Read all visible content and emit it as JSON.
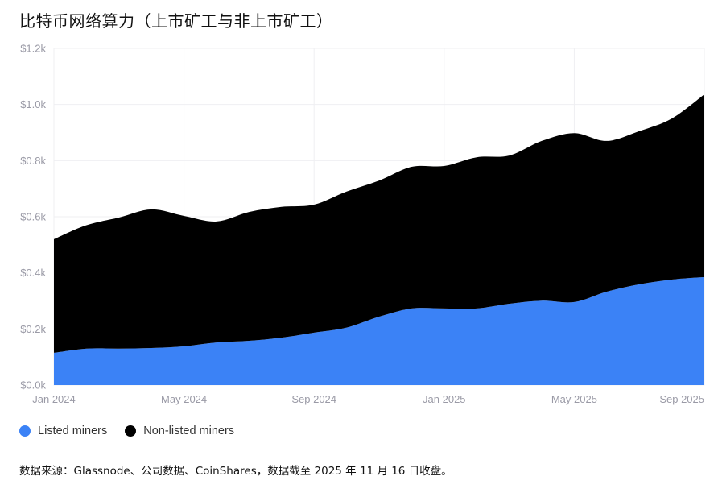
{
  "title": "比特币网络算力（上市矿工与非上市矿工）",
  "footer": "数据来源：Glassnode、公司数据、CoinShares，数据截至 2025 年 11 月 16 日收盘。",
  "chart_data": {
    "type": "area",
    "stacked": true,
    "title": "比特币网络算力（上市矿工与非上市矿工）",
    "xlabel": "",
    "ylabel": "",
    "x": [
      "2024-01",
      "2024-02",
      "2024-03",
      "2024-04",
      "2024-05",
      "2024-06",
      "2024-07",
      "2024-08",
      "2024-09",
      "2024-10",
      "2024-11",
      "2024-12",
      "2025-01",
      "2025-02",
      "2025-03",
      "2025-04",
      "2025-05",
      "2025-06",
      "2025-07",
      "2025-08",
      "2025-09"
    ],
    "x_ticks": [
      {
        "at": "2024-01",
        "label": "Jan 2024"
      },
      {
        "at": "2024-05",
        "label": "May 2024"
      },
      {
        "at": "2024-09",
        "label": "Sep 2024"
      },
      {
        "at": "2025-01",
        "label": "Jan 2025"
      },
      {
        "at": "2025-05",
        "label": "May 2025"
      },
      {
        "at": "2025-09",
        "label": "Sep 2025"
      }
    ],
    "y_ticks": [
      {
        "value": 0,
        "label": "$0.0k"
      },
      {
        "value": 200,
        "label": "$0.2k"
      },
      {
        "value": 400,
        "label": "$0.4k"
      },
      {
        "value": 600,
        "label": "$0.6k"
      },
      {
        "value": 800,
        "label": "$0.8k"
      },
      {
        "value": 1000,
        "label": "$1.0k"
      },
      {
        "value": 1200,
        "label": "$1.2k"
      }
    ],
    "ylim": [
      0,
      1200
    ],
    "grid": true,
    "legend_position": "bottom-left",
    "series": [
      {
        "name": "Listed miners",
        "color": "#3b82f6",
        "values": [
          115,
          130,
          130,
          132,
          138,
          152,
          158,
          169,
          187,
          205,
          244,
          273,
          273,
          273,
          290,
          301,
          296,
          333,
          359,
          376,
          385
        ]
      },
      {
        "name": "Non-listed miners",
        "color": "#000000",
        "values": [
          405,
          440,
          467,
          494,
          465,
          431,
          459,
          466,
          456,
          485,
          485,
          505,
          508,
          539,
          528,
          569,
          602,
          537,
          546,
          574,
          651
        ]
      }
    ]
  }
}
